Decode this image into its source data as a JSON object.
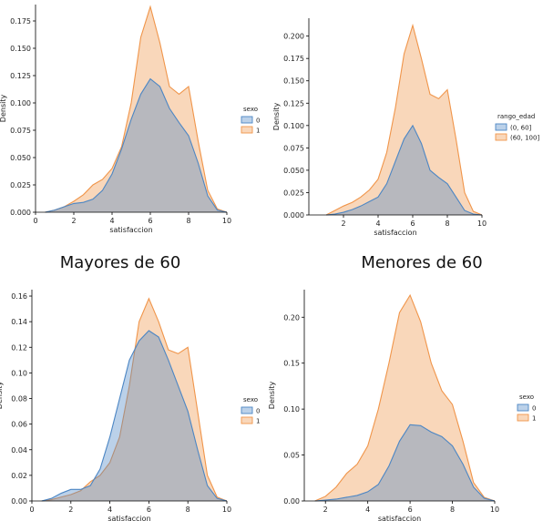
{
  "captions": [
    "Mayores de 60",
    "Menores de 60"
  ],
  "chart_data": [
    {
      "type": "area",
      "title": "",
      "xlabel": "satisfaccion",
      "ylabel": "Density",
      "xlim": [
        0,
        10
      ],
      "ylim": [
        0,
        0.19
      ],
      "xticks": [
        0,
        2,
        4,
        6,
        8,
        10
      ],
      "yticks": [
        0.0,
        0.025,
        0.05,
        0.075,
        0.1,
        0.125,
        0.15,
        0.175
      ],
      "ytick_labels": [
        "0.000",
        "0.025",
        "0.050",
        "0.075",
        "0.100",
        "0.125",
        "0.150",
        "0.175"
      ],
      "legend": {
        "title": "sexo",
        "position": "right"
      },
      "series": [
        {
          "name": "0",
          "color": "#4c86c4",
          "x": [
            0.5,
            1,
            1.5,
            2,
            2.5,
            3,
            3.5,
            4,
            4.5,
            5,
            5.5,
            6,
            6.5,
            7,
            7.5,
            8,
            8.5,
            9,
            9.5,
            10
          ],
          "y": [
            0.0,
            0.002,
            0.005,
            0.008,
            0.009,
            0.012,
            0.02,
            0.035,
            0.058,
            0.085,
            0.108,
            0.122,
            0.115,
            0.095,
            0.082,
            0.07,
            0.045,
            0.015,
            0.002,
            0.0
          ]
        },
        {
          "name": "1",
          "color": "#f0954a",
          "x": [
            0.5,
            1,
            1.5,
            2,
            2.5,
            3,
            3.5,
            4,
            4.5,
            5,
            5.5,
            6,
            6.5,
            7,
            7.5,
            8,
            8.5,
            9,
            9.5,
            10
          ],
          "y": [
            0.0,
            0.002,
            0.005,
            0.01,
            0.016,
            0.025,
            0.03,
            0.04,
            0.06,
            0.1,
            0.16,
            0.188,
            0.155,
            0.115,
            0.108,
            0.115,
            0.065,
            0.02,
            0.003,
            0.0
          ]
        }
      ]
    },
    {
      "type": "area",
      "title": "",
      "xlabel": "satisfaccion",
      "ylabel": "Density",
      "xlim": [
        0,
        10
      ],
      "ylim": [
        0,
        0.22
      ],
      "xticks": [
        2,
        4,
        6,
        8,
        10
      ],
      "yticks": [
        0.0,
        0.025,
        0.05,
        0.075,
        0.1,
        0.125,
        0.15,
        0.175,
        0.2
      ],
      "ytick_labels": [
        "0.000",
        "0.025",
        "0.050",
        "0.075",
        "0.100",
        "0.125",
        "0.150",
        "0.175",
        "0.200"
      ],
      "legend": {
        "title": "rango_edad",
        "position": "right"
      },
      "series": [
        {
          "name": "(0, 60]",
          "color": "#4c86c4",
          "x": [
            1,
            1.5,
            2,
            2.5,
            3,
            3.5,
            4,
            4.5,
            5,
            5.5,
            6,
            6.5,
            7,
            7.5,
            8,
            8.5,
            9,
            9.5,
            10
          ],
          "y": [
            0.0,
            0.001,
            0.003,
            0.006,
            0.01,
            0.015,
            0.02,
            0.035,
            0.06,
            0.085,
            0.1,
            0.08,
            0.05,
            0.042,
            0.035,
            0.02,
            0.005,
            0.001,
            0.0
          ]
        },
        {
          "name": "(60, 100]",
          "color": "#f0954a",
          "x": [
            1,
            1.5,
            2,
            2.5,
            3,
            3.5,
            4,
            4.5,
            5,
            5.5,
            6,
            6.5,
            7,
            7.5,
            8,
            8.5,
            9,
            9.5,
            10
          ],
          "y": [
            0.0,
            0.005,
            0.01,
            0.014,
            0.02,
            0.028,
            0.04,
            0.07,
            0.12,
            0.18,
            0.212,
            0.175,
            0.135,
            0.13,
            0.14,
            0.085,
            0.025,
            0.004,
            0.0
          ]
        }
      ]
    },
    {
      "type": "area",
      "title": "",
      "xlabel": "satisfaccion",
      "ylabel": "Density",
      "xlim": [
        0,
        10
      ],
      "ylim": [
        0,
        0.165
      ],
      "xticks": [
        0,
        2,
        4,
        6,
        8,
        10
      ],
      "yticks": [
        0.0,
        0.02,
        0.04,
        0.06,
        0.08,
        0.1,
        0.12,
        0.14,
        0.16
      ],
      "ytick_labels": [
        "0.00",
        "0.02",
        "0.04",
        "0.06",
        "0.08",
        "0.10",
        "0.12",
        "0.14",
        "0.16"
      ],
      "legend": {
        "title": "sexo",
        "position": "right"
      },
      "series": [
        {
          "name": "0",
          "color": "#4c86c4",
          "x": [
            0.5,
            1,
            1.5,
            2,
            2.5,
            3,
            3.5,
            4,
            4.5,
            5,
            5.5,
            6,
            6.5,
            7,
            7.5,
            8,
            8.5,
            9,
            9.5,
            10
          ],
          "y": [
            0.0,
            0.002,
            0.006,
            0.009,
            0.009,
            0.012,
            0.025,
            0.05,
            0.08,
            0.11,
            0.125,
            0.133,
            0.128,
            0.11,
            0.09,
            0.07,
            0.04,
            0.012,
            0.002,
            0.0
          ]
        },
        {
          "name": "1",
          "color": "#f0954a",
          "x": [
            0.5,
            1,
            1.5,
            2,
            2.5,
            3,
            3.5,
            4,
            4.5,
            5,
            5.5,
            6,
            6.5,
            7,
            7.5,
            8,
            8.5,
            9,
            9.5,
            10
          ],
          "y": [
            0.0,
            0.001,
            0.003,
            0.005,
            0.008,
            0.015,
            0.02,
            0.03,
            0.05,
            0.09,
            0.14,
            0.158,
            0.14,
            0.118,
            0.115,
            0.12,
            0.07,
            0.02,
            0.003,
            0.0
          ]
        }
      ]
    },
    {
      "type": "area",
      "title": "",
      "xlabel": "satisfaccion",
      "ylabel": "Density",
      "xlim": [
        1,
        10
      ],
      "ylim": [
        0,
        0.23
      ],
      "xticks": [
        2,
        4,
        6,
        8,
        10
      ],
      "yticks": [
        0.0,
        0.05,
        0.1,
        0.15,
        0.2
      ],
      "ytick_labels": [
        "0.00",
        "0.05",
        "0.10",
        "0.15",
        "0.20"
      ],
      "legend": {
        "title": "sexo",
        "position": "right"
      },
      "series": [
        {
          "name": "0",
          "color": "#4c86c4",
          "x": [
            1.5,
            2,
            2.5,
            3,
            3.5,
            4,
            4.5,
            5,
            5.5,
            6,
            6.5,
            7,
            7.5,
            8,
            8.5,
            9,
            9.5,
            10
          ],
          "y": [
            0.0,
            0.001,
            0.002,
            0.004,
            0.006,
            0.01,
            0.018,
            0.038,
            0.065,
            0.083,
            0.082,
            0.075,
            0.07,
            0.06,
            0.04,
            0.015,
            0.003,
            0.0
          ]
        },
        {
          "name": "1",
          "color": "#f0954a",
          "x": [
            1.5,
            2,
            2.5,
            3,
            3.5,
            4,
            4.5,
            5,
            5.5,
            6,
            6.5,
            7,
            7.5,
            8,
            8.5,
            9,
            9.5,
            10
          ],
          "y": [
            0.0,
            0.005,
            0.015,
            0.03,
            0.04,
            0.06,
            0.1,
            0.15,
            0.205,
            0.224,
            0.195,
            0.15,
            0.12,
            0.105,
            0.065,
            0.02,
            0.004,
            0.0
          ]
        }
      ]
    }
  ]
}
